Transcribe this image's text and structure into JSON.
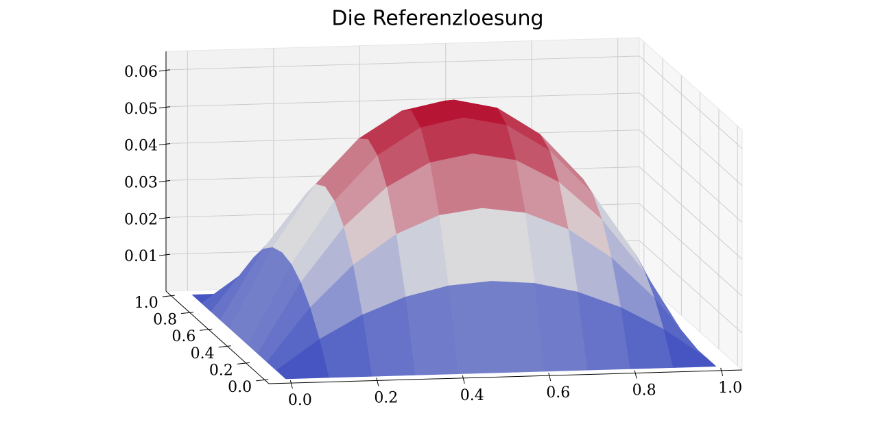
{
  "chart_data": {
    "type": "surface",
    "title": "Die Referenzloesung",
    "x": [
      0,
      0.1,
      0.2,
      0.3,
      0.4,
      0.5,
      0.6,
      0.7,
      0.8,
      0.9,
      1
    ],
    "y": [
      0,
      0.1,
      0.2,
      0.3,
      0.4,
      0.5,
      0.6,
      0.7,
      0.8,
      0.9,
      1
    ],
    "z": [
      [
        0,
        0,
        0,
        0,
        0,
        0,
        0,
        0,
        0,
        0,
        0
      ],
      [
        0,
        0.0081,
        0.0144,
        0.0189,
        0.0216,
        0.0225,
        0.0216,
        0.0189,
        0.0144,
        0.0081,
        0
      ],
      [
        0,
        0.0144,
        0.0256,
        0.0336,
        0.0384,
        0.04,
        0.0384,
        0.0336,
        0.0256,
        0.0144,
        0
      ],
      [
        0,
        0.0189,
        0.0336,
        0.0441,
        0.0504,
        0.0525,
        0.0504,
        0.0441,
        0.0336,
        0.0189,
        0
      ],
      [
        0,
        0.0216,
        0.0384,
        0.0504,
        0.0576,
        0.06,
        0.0576,
        0.0504,
        0.0384,
        0.0216,
        0
      ],
      [
        0,
        0.0225,
        0.04,
        0.0525,
        0.06,
        0.0625,
        0.06,
        0.0525,
        0.04,
        0.0225,
        0
      ],
      [
        0,
        0.0216,
        0.0384,
        0.0504,
        0.0576,
        0.06,
        0.0576,
        0.0504,
        0.0384,
        0.0216,
        0
      ],
      [
        0,
        0.0189,
        0.0336,
        0.0441,
        0.0504,
        0.0525,
        0.0504,
        0.0441,
        0.0336,
        0.0189,
        0
      ],
      [
        0,
        0.0144,
        0.0256,
        0.0336,
        0.0384,
        0.04,
        0.0384,
        0.0336,
        0.0256,
        0.0144,
        0
      ],
      [
        0,
        0.0081,
        0.0144,
        0.0189,
        0.0216,
        0.0225,
        0.0216,
        0.0189,
        0.0144,
        0.0081,
        0
      ],
      [
        0,
        0,
        0,
        0,
        0,
        0,
        0,
        0,
        0,
        0,
        0
      ]
    ],
    "colormap": [
      "#3b4cc0",
      "#dddddd",
      "#b40426"
    ],
    "xlim": [
      -0.05,
      1.05
    ],
    "ylim": [
      -0.05,
      1.05
    ],
    "zlim": [
      0,
      0.065
    ],
    "xticks": [
      {
        "value": 0,
        "label": "0.0"
      },
      0.2,
      0.4,
      0.6,
      0.8,
      {
        "value": 1,
        "label": "1.0"
      }
    ],
    "yticks": [
      {
        "value": 0,
        "label": "0.0"
      },
      0.2,
      0.4,
      0.6,
      0.8,
      {
        "value": 1,
        "label": "1.0"
      }
    ],
    "zticks": [
      0.01,
      0.02,
      0.03,
      0.04,
      0.05,
      0.06
    ],
    "grid": true
  }
}
